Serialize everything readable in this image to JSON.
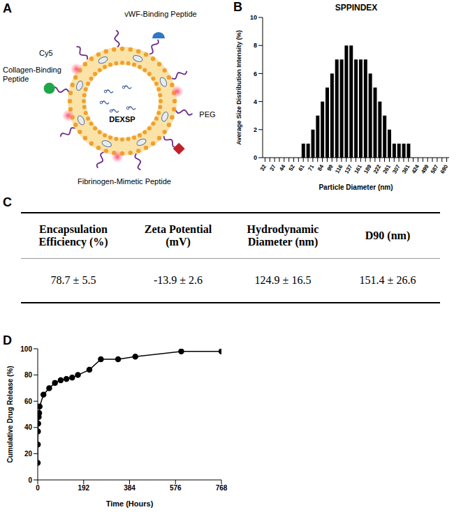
{
  "diagram": {
    "panel": "A",
    "nodes": [
      {
        "label": "vWF-Binding Peptide"
      },
      {
        "label": "Cy5"
      },
      {
        "label": "Collagen-Binding Peptide"
      },
      {
        "label": "DEXSP"
      },
      {
        "label": "PEG"
      },
      {
        "label": "Fibrinogen-Mimetic Peptide"
      }
    ]
  },
  "table": {
    "panel": "C",
    "header": [
      "Encapsulation Efficiency (%)",
      "Zeta Potential (mV)",
      "Hydrodynamic Diameter (nm)",
      "D90 (nm)"
    ],
    "rows": [
      [
        "78.7 ± 5.5",
        "-13.9 ± 2.6",
        "124.9 ± 16.5",
        "151.4 ± 26.6"
      ]
    ]
  },
  "chart_data": [
    {
      "panel": "B",
      "type": "bar",
      "title": "SPPINDEX",
      "x_label": "Particle Diameter (nm)",
      "y_label": "Average Size Distribution Intensity (%)",
      "categories": [
        "32",
        null,
        "37",
        null,
        "44",
        null,
        "52",
        null,
        "61",
        null,
        "71",
        null,
        "84",
        null,
        "99",
        null,
        "116",
        null,
        "137",
        null,
        "161",
        null,
        "189",
        null,
        "222",
        null,
        "261",
        null,
        "307",
        null,
        "361",
        null,
        "424",
        null,
        "499",
        null,
        "587",
        null,
        "690"
      ],
      "values": [
        0,
        0,
        0,
        0,
        0,
        0,
        0,
        0,
        1,
        1,
        2,
        3,
        4,
        5,
        6,
        7,
        7,
        8,
        8,
        7,
        7,
        7,
        6,
        5,
        4,
        3,
        2,
        1,
        1,
        1,
        1,
        0,
        0,
        0,
        0,
        0,
        0,
        0,
        0
      ],
      "color": "#000000",
      "ylim": [
        0,
        10
      ],
      "yticks": [
        0,
        2,
        4,
        6,
        8,
        10
      ]
    },
    {
      "panel": "D",
      "type": "line",
      "x_label": "Time (Hours)",
      "y_label": "Cumulative Drug Release (%)",
      "x": [
        0,
        0.5,
        1,
        2,
        4,
        6,
        8,
        24,
        48,
        72,
        96,
        120,
        144,
        168,
        216,
        264,
        336,
        408,
        600,
        768
      ],
      "values": [
        13,
        27,
        37,
        43,
        48,
        51,
        56,
        65,
        70,
        74,
        76,
        77,
        78,
        80,
        84,
        92,
        92,
        94,
        98,
        98
      ],
      "color": "#000000",
      "marker": "circle",
      "xlim": [
        0,
        768
      ],
      "xticks": [
        0,
        192,
        384,
        576,
        768
      ],
      "ylim": [
        0,
        100
      ],
      "yticks": [
        0,
        20,
        40,
        60,
        80,
        100
      ]
    }
  ]
}
